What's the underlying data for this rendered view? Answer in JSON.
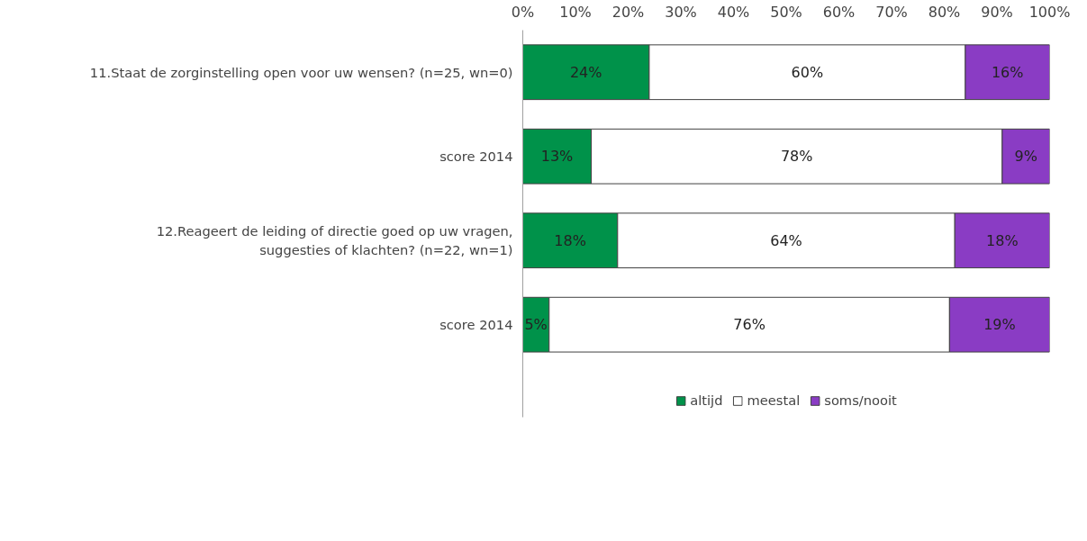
{
  "chart_data": {
    "type": "bar",
    "orientation": "horizontal",
    "stacked": true,
    "categories": [
      "11.Staat de zorginstelling open voor uw wensen? (n=25, wn=0)",
      "score 2014",
      "12.Reageert de leiding of directie goed op uw vragen, suggesties of klachten? (n=22, wn=1)",
      "score 2014"
    ],
    "series": [
      {
        "name": "altijd",
        "color": "#00924a",
        "values": [
          24,
          13,
          18,
          5
        ],
        "value_labels": [
          "24%",
          "13%",
          "18%",
          "5%"
        ]
      },
      {
        "name": "meestal",
        "color": "#ffffff",
        "values": [
          60,
          78,
          64,
          76
        ],
        "value_labels": [
          "60%",
          "78%",
          "64%",
          "76%"
        ]
      },
      {
        "name": "soms/nooit",
        "color": "#8a3cc4",
        "values": [
          16,
          9,
          18,
          19
        ],
        "value_labels": [
          "16%",
          "9%",
          "18%",
          "19%"
        ]
      }
    ],
    "xlim": [
      0,
      100
    ],
    "xticks": [
      {
        "value": 0,
        "label": "0%"
      },
      {
        "value": 10,
        "label": "10%"
      },
      {
        "value": 20,
        "label": "20%"
      },
      {
        "value": 30,
        "label": "30%"
      },
      {
        "value": 40,
        "label": "40%"
      },
      {
        "value": 50,
        "label": "50%"
      },
      {
        "value": 60,
        "label": "60%"
      },
      {
        "value": 70,
        "label": "70%"
      },
      {
        "value": 80,
        "label": "80%"
      },
      {
        "value": 90,
        "label": "90%"
      },
      {
        "value": 100,
        "label": "100%"
      }
    ],
    "grid": false,
    "legend": "bottom"
  }
}
